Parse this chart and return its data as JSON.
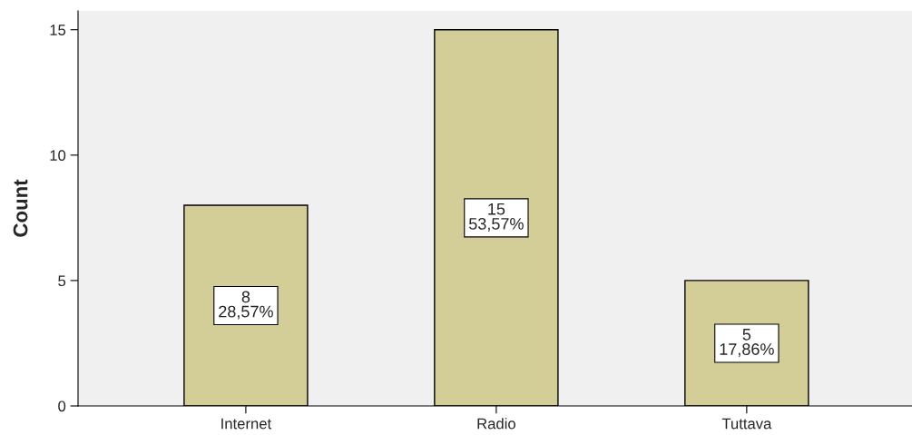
{
  "chart_data": {
    "type": "bar",
    "ylabel": "Count",
    "categories": [
      "Internet",
      "Radio",
      "Tuttava"
    ],
    "values": [
      8,
      15,
      5
    ],
    "color": "#d3ce98",
    "value_labels": [
      "8\n28,57%",
      "15\n53,57%",
      "5\n17,86%"
    ],
    "ylim": [
      0,
      15.75
    ],
    "yticks": [
      0,
      5,
      10,
      15
    ],
    "grid": false,
    "legend": false
  }
}
